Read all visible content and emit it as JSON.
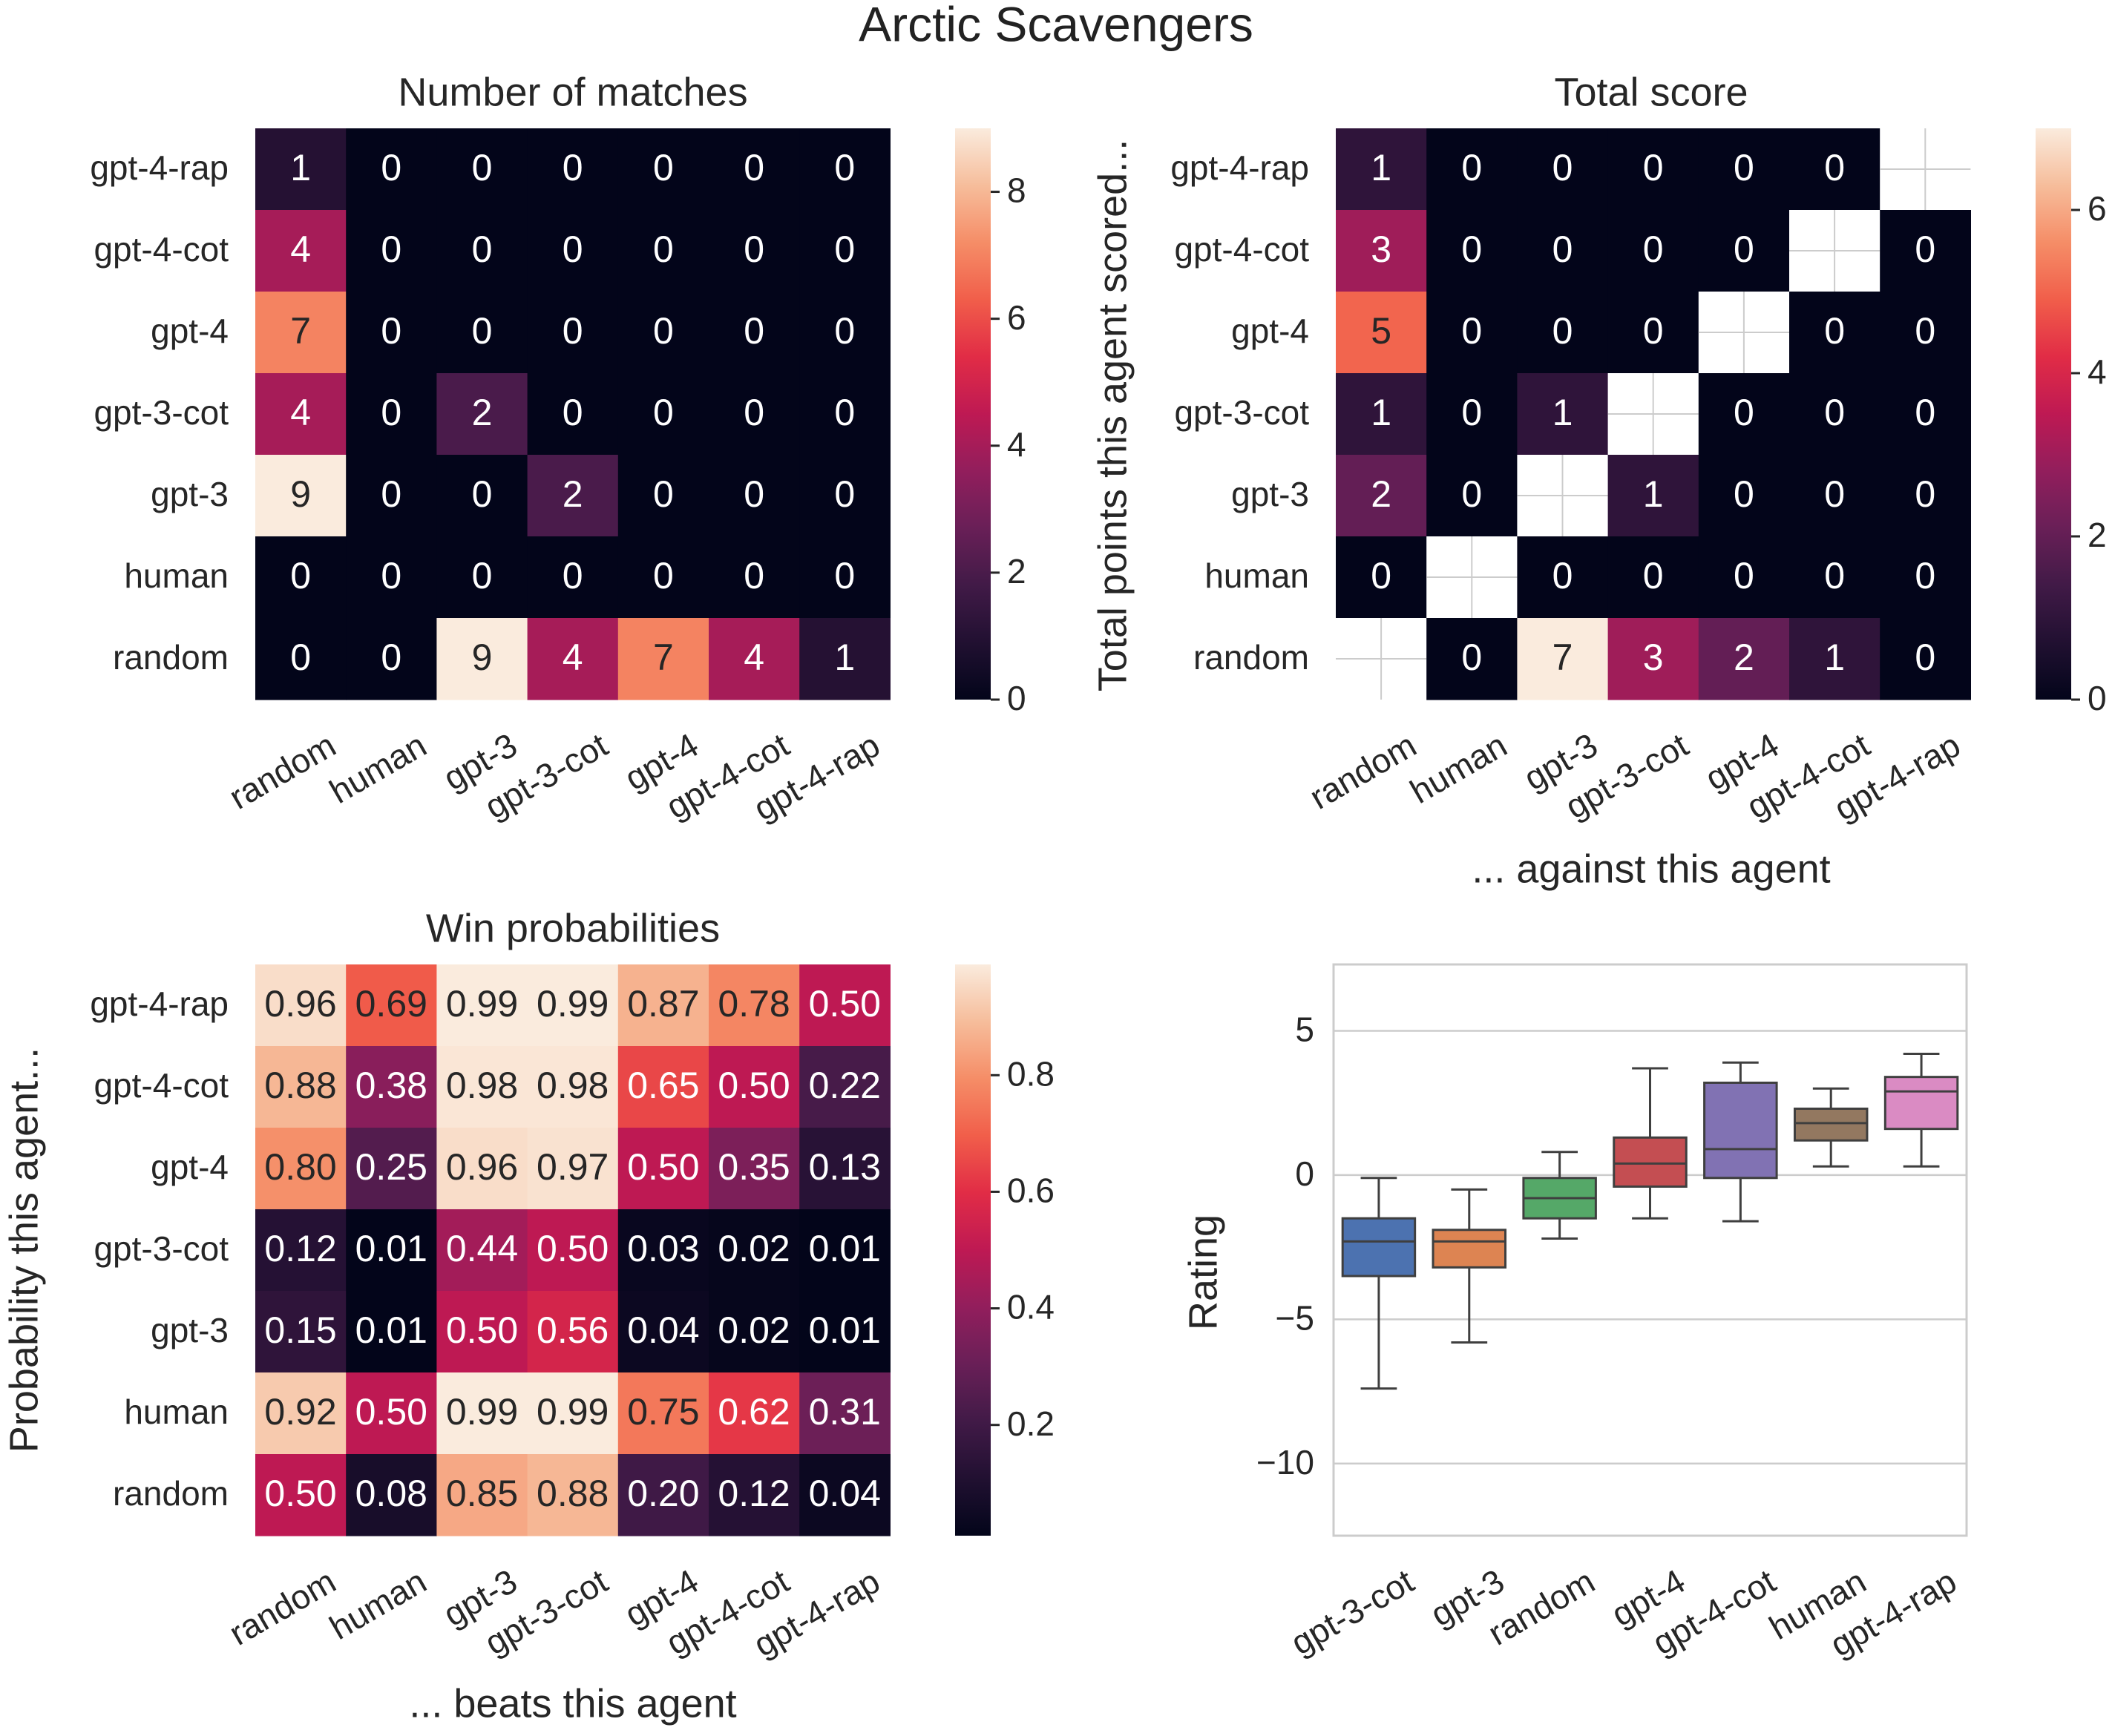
{
  "suptitle": "Arctic Scavengers",
  "chart_data": [
    {
      "type": "heatmap",
      "title": "Number of matches",
      "xlabel": "",
      "ylabel": "",
      "rows": [
        "gpt-4-rap",
        "gpt-4-cot",
        "gpt-4",
        "gpt-3-cot",
        "gpt-3",
        "human",
        "random"
      ],
      "cols": [
        "random",
        "human",
        "gpt-3",
        "gpt-3-cot",
        "gpt-4",
        "gpt-4-cot",
        "gpt-4-rap"
      ],
      "values": [
        [
          1,
          0,
          0,
          0,
          0,
          0,
          0
        ],
        [
          4,
          0,
          0,
          0,
          0,
          0,
          0
        ],
        [
          7,
          0,
          0,
          0,
          0,
          0,
          0
        ],
        [
          4,
          0,
          2,
          0,
          0,
          0,
          0
        ],
        [
          9,
          0,
          0,
          2,
          0,
          0,
          0
        ],
        [
          0,
          0,
          0,
          0,
          0,
          0,
          0
        ],
        [
          0,
          0,
          9,
          4,
          7,
          4,
          1
        ]
      ],
      "labels": [
        [
          "1",
          "0",
          "0",
          "0",
          "0",
          "0",
          "0"
        ],
        [
          "4",
          "0",
          "0",
          "0",
          "0",
          "0",
          "0"
        ],
        [
          "7",
          "0",
          "0",
          "0",
          "0",
          "0",
          "0"
        ],
        [
          "4",
          "0",
          "2",
          "0",
          "0",
          "0",
          "0"
        ],
        [
          "9",
          "0",
          "0",
          "2",
          "0",
          "0",
          "0"
        ],
        [
          "0",
          "0",
          "0",
          "0",
          "0",
          "0",
          "0"
        ],
        [
          "0",
          "0",
          "9",
          "4",
          "7",
          "4",
          "1"
        ]
      ],
      "vmin": 0,
      "vmax": 9,
      "colorbar_ticks": [
        0,
        2,
        4,
        6,
        8
      ],
      "colorbar_tick_labels": [
        "0",
        "2",
        "4",
        "6",
        "8"
      ]
    },
    {
      "type": "heatmap",
      "title": "Total score",
      "xlabel": "... against this agent",
      "ylabel": "Total points this agent scored...",
      "rows": [
        "gpt-4-rap",
        "gpt-4-cot",
        "gpt-4",
        "gpt-3-cot",
        "gpt-3",
        "human",
        "random"
      ],
      "cols": [
        "random",
        "human",
        "gpt-3",
        "gpt-3-cot",
        "gpt-4",
        "gpt-4-cot",
        "gpt-4-rap"
      ],
      "values": [
        [
          1,
          0,
          0,
          0,
          0,
          0,
          null
        ],
        [
          3,
          0,
          0,
          0,
          0,
          null,
          0
        ],
        [
          5,
          0,
          0,
          0,
          null,
          0,
          0
        ],
        [
          1,
          0,
          1,
          null,
          0,
          0,
          0
        ],
        [
          2,
          0,
          null,
          1,
          0,
          0,
          0
        ],
        [
          0,
          null,
          0,
          0,
          0,
          0,
          0
        ],
        [
          null,
          0,
          7,
          3,
          2,
          1,
          0
        ]
      ],
      "labels": [
        [
          "1",
          "0",
          "0",
          "0",
          "0",
          "0",
          ""
        ],
        [
          "3",
          "0",
          "0",
          "0",
          "0",
          "",
          "0"
        ],
        [
          "5",
          "0",
          "0",
          "0",
          "",
          "0",
          "0"
        ],
        [
          "1",
          "0",
          "1",
          "",
          "0",
          "0",
          "0"
        ],
        [
          "2",
          "0",
          "",
          "1",
          "0",
          "0",
          "0"
        ],
        [
          "0",
          "",
          "0",
          "0",
          "0",
          "0",
          "0"
        ],
        [
          "",
          "0",
          "7",
          "3",
          "2",
          "1",
          "0"
        ]
      ],
      "vmin": 0,
      "vmax": 7,
      "colorbar_ticks": [
        0,
        2,
        4,
        6
      ],
      "colorbar_tick_labels": [
        "0",
        "2",
        "4",
        "6"
      ]
    },
    {
      "type": "heatmap",
      "title": "Win probabilities",
      "xlabel": "... beats this agent",
      "ylabel": "Probability this agent...",
      "rows": [
        "gpt-4-rap",
        "gpt-4-cot",
        "gpt-4",
        "gpt-3-cot",
        "gpt-3",
        "human",
        "random"
      ],
      "cols": [
        "random",
        "human",
        "gpt-3",
        "gpt-3-cot",
        "gpt-4",
        "gpt-4-cot",
        "gpt-4-rap"
      ],
      "values": [
        [
          0.96,
          0.69,
          0.99,
          0.99,
          0.87,
          0.78,
          0.5
        ],
        [
          0.88,
          0.38,
          0.98,
          0.98,
          0.65,
          0.5,
          0.22
        ],
        [
          0.8,
          0.25,
          0.96,
          0.97,
          0.5,
          0.35,
          0.13
        ],
        [
          0.12,
          0.01,
          0.44,
          0.5,
          0.03,
          0.02,
          0.01
        ],
        [
          0.15,
          0.01,
          0.5,
          0.56,
          0.04,
          0.02,
          0.01
        ],
        [
          0.92,
          0.5,
          0.99,
          0.99,
          0.75,
          0.62,
          0.31
        ],
        [
          0.5,
          0.08,
          0.85,
          0.88,
          0.2,
          0.12,
          0.04
        ]
      ],
      "labels": [
        [
          "0.96",
          "0.69",
          "0.99",
          "0.99",
          "0.87",
          "0.78",
          "0.50"
        ],
        [
          "0.88",
          "0.38",
          "0.98",
          "0.98",
          "0.65",
          "0.50",
          "0.22"
        ],
        [
          "0.80",
          "0.25",
          "0.96",
          "0.97",
          "0.50",
          "0.35",
          "0.13"
        ],
        [
          "0.12",
          "0.01",
          "0.44",
          "0.50",
          "0.03",
          "0.02",
          "0.01"
        ],
        [
          "0.15",
          "0.01",
          "0.50",
          "0.56",
          "0.04",
          "0.02",
          "0.01"
        ],
        [
          "0.92",
          "0.50",
          "0.99",
          "0.99",
          "0.75",
          "0.62",
          "0.31"
        ],
        [
          "0.50",
          "0.08",
          "0.85",
          "0.88",
          "0.20",
          "0.12",
          "0.04"
        ]
      ],
      "vmin": 0.01,
      "vmax": 0.99,
      "colorbar_ticks": [
        0.2,
        0.4,
        0.6,
        0.8
      ],
      "colorbar_tick_labels": [
        "0.2",
        "0.4",
        "0.6",
        "0.8"
      ]
    },
    {
      "type": "box",
      "title": "",
      "xlabel": "",
      "ylabel": "Rating",
      "categories": [
        "gpt-3-cot",
        "gpt-3",
        "random",
        "gpt-4",
        "gpt-4-cot",
        "human",
        "gpt-4-rap"
      ],
      "boxes": [
        {
          "name": "gpt-3-cot",
          "whislo": -7.4,
          "q1": -3.5,
          "med": -2.3,
          "q3": -1.5,
          "whishi": -0.1,
          "color": "#4c72b0"
        },
        {
          "name": "gpt-3",
          "whislo": -5.8,
          "q1": -3.2,
          "med": -2.3,
          "q3": -1.9,
          "whishi": -0.5,
          "color": "#dd8452"
        },
        {
          "name": "random",
          "whislo": -2.2,
          "q1": -1.5,
          "med": -0.8,
          "q3": -0.1,
          "whishi": 0.8,
          "color": "#55a868"
        },
        {
          "name": "gpt-4",
          "whislo": -1.5,
          "q1": -0.4,
          "med": 0.4,
          "q3": 1.3,
          "whishi": 3.7,
          "color": "#c44e52"
        },
        {
          "name": "gpt-4-cot",
          "whislo": -1.6,
          "q1": -0.1,
          "med": 0.9,
          "q3": 3.2,
          "whishi": 3.9,
          "color": "#8172b3"
        },
        {
          "name": "human",
          "whislo": 0.3,
          "q1": 1.2,
          "med": 1.8,
          "q3": 2.3,
          "whishi": 3.0,
          "color": "#937860"
        },
        {
          "name": "gpt-4-rap",
          "whislo": 0.3,
          "q1": 1.6,
          "med": 2.9,
          "q3": 3.4,
          "whishi": 4.2,
          "color": "#da8bc3"
        }
      ],
      "ylim": [
        -12.5,
        7.3
      ],
      "yticks": [
        5,
        0,
        -5,
        -10
      ],
      "ytick_labels": [
        "5",
        "0",
        "−5",
        "−10"
      ],
      "grid": true
    }
  ]
}
